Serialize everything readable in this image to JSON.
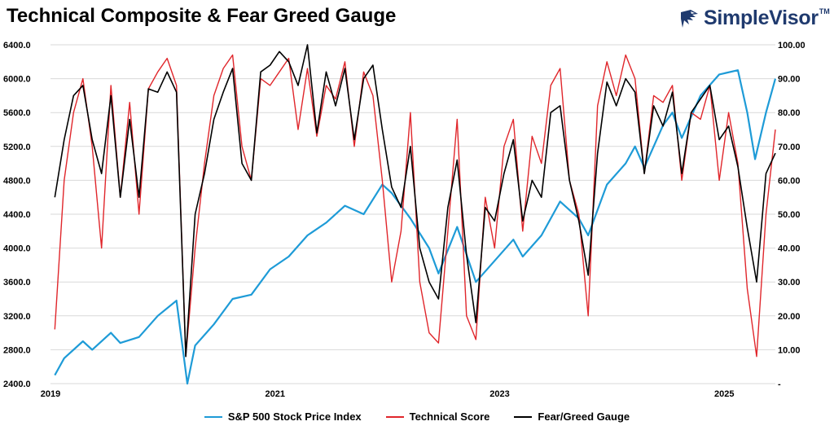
{
  "title": "Technical Composite & Fear Greed Gauge",
  "brand": {
    "name": "SimpleVisor",
    "trademark": "TM",
    "icon": "eagle-logo-icon"
  },
  "colors": {
    "sp500": "#1e9bd7",
    "technical": "#e0262b",
    "feargreed": "#000000",
    "grid": "#d9d9d9",
    "brand": "#1f3a6e"
  },
  "chart_data": {
    "type": "line",
    "title": "Technical Composite & Fear Greed Gauge",
    "x_range": [
      "2019-01",
      "2025-06"
    ],
    "x_ticks": [
      "2019",
      "2021",
      "2023",
      "2025"
    ],
    "y_left": {
      "range": [
        2400,
        6400
      ],
      "ticks": [
        "6400.0",
        "6000.0",
        "5600.0",
        "5200.0",
        "4800.0",
        "4400.0",
        "4000.0",
        "3600.0",
        "3200.0",
        "2800.0",
        "2400.0"
      ]
    },
    "y_right": {
      "range": [
        0,
        100
      ],
      "ticks": [
        "100.00",
        "90.00",
        "80.00",
        "70.00",
        "60.00",
        "50.00",
        "40.00",
        "30.00",
        "20.00",
        "10.00",
        "-"
      ]
    },
    "grid": true,
    "legend_position": "bottom",
    "series": [
      {
        "name": "S&P 500 Stock Price Index",
        "axis": "left",
        "points": [
          [
            "2019-01",
            2500
          ],
          [
            "2019-02",
            2700
          ],
          [
            "2019-04",
            2900
          ],
          [
            "2019-05",
            2800
          ],
          [
            "2019-07",
            3000
          ],
          [
            "2019-08",
            2880
          ],
          [
            "2019-10",
            2950
          ],
          [
            "2019-12",
            3200
          ],
          [
            "2020-02",
            3380
          ],
          [
            "2020-03-20",
            2400
          ],
          [
            "2020-04",
            2850
          ],
          [
            "2020-06",
            3100
          ],
          [
            "2020-08",
            3400
          ],
          [
            "2020-10",
            3450
          ],
          [
            "2020-12",
            3750
          ],
          [
            "2021-02",
            3900
          ],
          [
            "2021-04",
            4150
          ],
          [
            "2021-06",
            4300
          ],
          [
            "2021-08",
            4500
          ],
          [
            "2021-10",
            4400
          ],
          [
            "2021-12",
            4750
          ],
          [
            "2022-01",
            4650
          ],
          [
            "2022-03",
            4350
          ],
          [
            "2022-05",
            4000
          ],
          [
            "2022-06",
            3700
          ],
          [
            "2022-08",
            4250
          ],
          [
            "2022-10",
            3600
          ],
          [
            "2022-12",
            3850
          ],
          [
            "2023-02",
            4100
          ],
          [
            "2023-03",
            3900
          ],
          [
            "2023-05",
            4150
          ],
          [
            "2023-07",
            4550
          ],
          [
            "2023-09",
            4350
          ],
          [
            "2023-10",
            4150
          ],
          [
            "2023-12",
            4750
          ],
          [
            "2024-02",
            5000
          ],
          [
            "2024-03",
            5200
          ],
          [
            "2024-04",
            4950
          ],
          [
            "2024-06",
            5450
          ],
          [
            "2024-07",
            5600
          ],
          [
            "2024-08",
            5300
          ],
          [
            "2024-10",
            5800
          ],
          [
            "2024-12",
            6050
          ],
          [
            "2025-02",
            6100
          ],
          [
            "2025-03",
            5600
          ],
          [
            "2025-04-10",
            5050
          ],
          [
            "2025-05",
            5600
          ],
          [
            "2025-06",
            6000
          ]
        ]
      },
      {
        "name": "Technical Score",
        "axis": "right",
        "points": [
          [
            "2019-01",
            16
          ],
          [
            "2019-02",
            60
          ],
          [
            "2019-03",
            80
          ],
          [
            "2019-04",
            90
          ],
          [
            "2019-05",
            70
          ],
          [
            "2019-06",
            40
          ],
          [
            "2019-07",
            88
          ],
          [
            "2019-08",
            55
          ],
          [
            "2019-09",
            83
          ],
          [
            "2019-10",
            50
          ],
          [
            "2019-11",
            87
          ],
          [
            "2019-12",
            92
          ],
          [
            "2020-01",
            96
          ],
          [
            "2020-02",
            88
          ],
          [
            "2020-03",
            8
          ],
          [
            "2020-04",
            40
          ],
          [
            "2020-05",
            65
          ],
          [
            "2020-06",
            85
          ],
          [
            "2020-07",
            93
          ],
          [
            "2020-08",
            97
          ],
          [
            "2020-09",
            70
          ],
          [
            "2020-10",
            60
          ],
          [
            "2020-11",
            90
          ],
          [
            "2020-12",
            88
          ],
          [
            "2021-01",
            92
          ],
          [
            "2021-02",
            96
          ],
          [
            "2021-03",
            75
          ],
          [
            "2021-04",
            93
          ],
          [
            "2021-05",
            73
          ],
          [
            "2021-06",
            88
          ],
          [
            "2021-07",
            84
          ],
          [
            "2021-08",
            95
          ],
          [
            "2021-09",
            70
          ],
          [
            "2021-10",
            92
          ],
          [
            "2021-11",
            85
          ],
          [
            "2021-12",
            60
          ],
          [
            "2022-01",
            30
          ],
          [
            "2022-02",
            45
          ],
          [
            "2022-03",
            80
          ],
          [
            "2022-04",
            30
          ],
          [
            "2022-05",
            15
          ],
          [
            "2022-06",
            12
          ],
          [
            "2022-07",
            45
          ],
          [
            "2022-08",
            78
          ],
          [
            "2022-09",
            20
          ],
          [
            "2022-10",
            13
          ],
          [
            "2022-11",
            55
          ],
          [
            "2022-12",
            40
          ],
          [
            "2023-01",
            70
          ],
          [
            "2023-02",
            78
          ],
          [
            "2023-03",
            45
          ],
          [
            "2023-04",
            73
          ],
          [
            "2023-05",
            65
          ],
          [
            "2023-06",
            88
          ],
          [
            "2023-07",
            93
          ],
          [
            "2023-08",
            60
          ],
          [
            "2023-09",
            50
          ],
          [
            "2023-10",
            20
          ],
          [
            "2023-11",
            82
          ],
          [
            "2023-12",
            95
          ],
          [
            "2024-01",
            85
          ],
          [
            "2024-02",
            97
          ],
          [
            "2024-03",
            90
          ],
          [
            "2024-04",
            62
          ],
          [
            "2024-05",
            85
          ],
          [
            "2024-06",
            83
          ],
          [
            "2024-07",
            88
          ],
          [
            "2024-08",
            60
          ],
          [
            "2024-09",
            80
          ],
          [
            "2024-10",
            78
          ],
          [
            "2024-11",
            88
          ],
          [
            "2024-12",
            60
          ],
          [
            "2025-01",
            80
          ],
          [
            "2025-02",
            65
          ],
          [
            "2025-03",
            28
          ],
          [
            "2025-04",
            8
          ],
          [
            "2025-05",
            50
          ],
          [
            "2025-06",
            75
          ]
        ]
      },
      {
        "name": "Fear/Greed Gauge",
        "axis": "right",
        "points": [
          [
            "2019-01",
            55
          ],
          [
            "2019-02",
            72
          ],
          [
            "2019-03",
            85
          ],
          [
            "2019-04",
            88
          ],
          [
            "2019-05",
            72
          ],
          [
            "2019-06",
            62
          ],
          [
            "2019-07",
            85
          ],
          [
            "2019-08",
            55
          ],
          [
            "2019-09",
            78
          ],
          [
            "2019-10",
            55
          ],
          [
            "2019-11",
            87
          ],
          [
            "2019-12",
            86
          ],
          [
            "2020-01",
            92
          ],
          [
            "2020-02",
            86
          ],
          [
            "2020-03",
            8
          ],
          [
            "2020-04",
            50
          ],
          [
            "2020-05",
            62
          ],
          [
            "2020-06",
            78
          ],
          [
            "2020-07",
            86
          ],
          [
            "2020-08",
            93
          ],
          [
            "2020-09",
            65
          ],
          [
            "2020-10",
            60
          ],
          [
            "2020-11",
            92
          ],
          [
            "2020-12",
            94
          ],
          [
            "2021-01",
            98
          ],
          [
            "2021-02",
            95
          ],
          [
            "2021-03",
            88
          ],
          [
            "2021-04",
            100
          ],
          [
            "2021-05",
            74
          ],
          [
            "2021-06",
            92
          ],
          [
            "2021-07",
            82
          ],
          [
            "2021-08",
            93
          ],
          [
            "2021-09",
            72
          ],
          [
            "2021-10",
            90
          ],
          [
            "2021-11",
            94
          ],
          [
            "2021-12",
            75
          ],
          [
            "2022-01",
            58
          ],
          [
            "2022-02",
            52
          ],
          [
            "2022-03",
            70
          ],
          [
            "2022-04",
            40
          ],
          [
            "2022-05",
            30
          ],
          [
            "2022-06",
            25
          ],
          [
            "2022-07",
            52
          ],
          [
            "2022-08",
            66
          ],
          [
            "2022-09",
            38
          ],
          [
            "2022-10",
            18
          ],
          [
            "2022-11",
            52
          ],
          [
            "2022-12",
            48
          ],
          [
            "2023-01",
            62
          ],
          [
            "2023-02",
            72
          ],
          [
            "2023-03",
            48
          ],
          [
            "2023-04",
            60
          ],
          [
            "2023-05",
            55
          ],
          [
            "2023-06",
            80
          ],
          [
            "2023-07",
            82
          ],
          [
            "2023-08",
            60
          ],
          [
            "2023-09",
            48
          ],
          [
            "2023-10",
            32
          ],
          [
            "2023-11",
            68
          ],
          [
            "2023-12",
            89
          ],
          [
            "2024-01",
            82
          ],
          [
            "2024-02",
            90
          ],
          [
            "2024-03",
            86
          ],
          [
            "2024-04",
            62
          ],
          [
            "2024-05",
            82
          ],
          [
            "2024-06",
            76
          ],
          [
            "2024-07",
            86
          ],
          [
            "2024-08",
            62
          ],
          [
            "2024-09",
            80
          ],
          [
            "2024-10",
            84
          ],
          [
            "2024-11",
            88
          ],
          [
            "2024-12",
            72
          ],
          [
            "2025-01",
            76
          ],
          [
            "2025-02",
            64
          ],
          [
            "2025-03",
            46
          ],
          [
            "2025-04",
            30
          ],
          [
            "2025-05",
            62
          ],
          [
            "2025-06",
            68
          ]
        ]
      }
    ]
  }
}
